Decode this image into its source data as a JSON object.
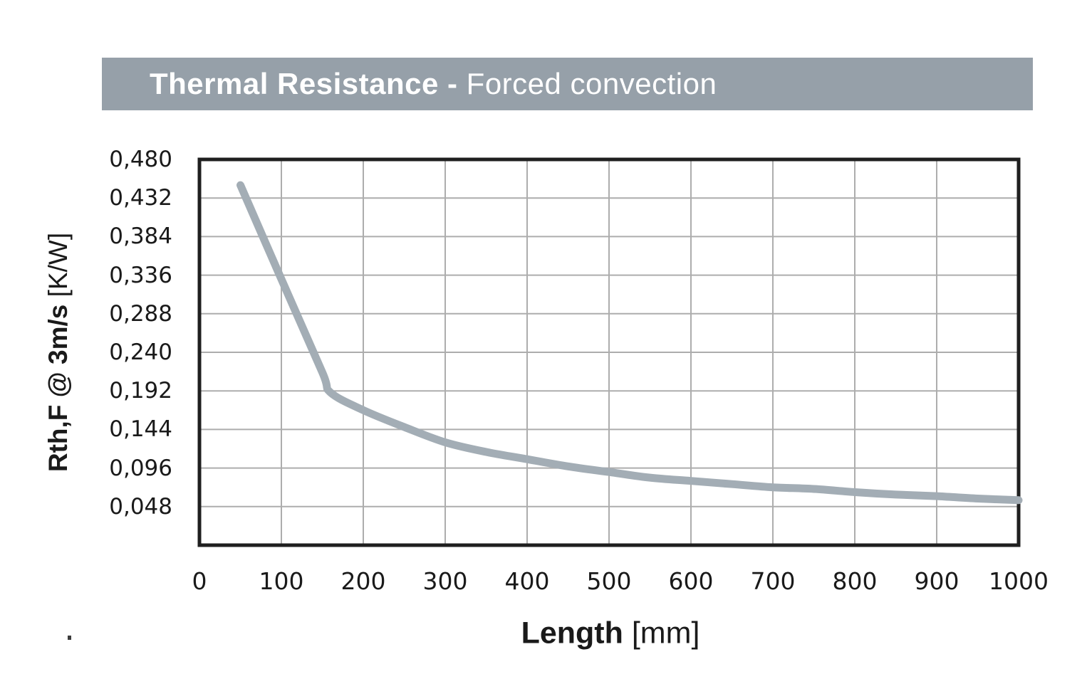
{
  "header": {
    "title_bold": "Thermal Resistance - ",
    "title_regular": "Forced convection",
    "bg_color": "#96a0a9",
    "text_color": "#ffffff"
  },
  "chart_data": {
    "type": "line",
    "title": "Thermal Resistance - Forced convection",
    "xlabel_bold": "Length",
    "xlabel_unit": "[mm]",
    "ylabel_bold": "Rth,F @ 3m/s",
    "ylabel_unit": "[K/W]",
    "xlim": [
      0,
      1000
    ],
    "ylim": [
      0,
      0.48
    ],
    "grid": true,
    "legend": "none",
    "decimal_separator": ",",
    "x_ticks": [
      "0",
      "100",
      "200",
      "300",
      "400",
      "500",
      "600",
      "700",
      "800",
      "900",
      "1000"
    ],
    "x_tick_values": [
      0,
      100,
      200,
      300,
      400,
      500,
      600,
      700,
      800,
      900,
      1000
    ],
    "y_tick_labels": [
      "0,480",
      "0,432",
      "0,384",
      "0,336",
      "0,288",
      "0,240",
      "0,192",
      "0,144",
      "0,096",
      "0,048"
    ],
    "y_tick_values": [
      0.48,
      0.432,
      0.384,
      0.336,
      0.288,
      0.24,
      0.192,
      0.144,
      0.096,
      0.048
    ],
    "colors": {
      "line": "#a3adb5",
      "grid": "#adadad",
      "border": "#1f1f1f",
      "background": "#ffffff"
    },
    "line_width": 11,
    "series": [
      {
        "name": "Rth,F @ 3m/s",
        "points": [
          [
            50,
            0.448
          ],
          [
            100,
            0.331
          ],
          [
            150,
            0.215
          ],
          [
            160,
            0.19
          ],
          [
            200,
            0.168
          ],
          [
            250,
            0.147
          ],
          [
            300,
            0.128
          ],
          [
            350,
            0.116
          ],
          [
            400,
            0.107
          ],
          [
            450,
            0.098
          ],
          [
            500,
            0.091
          ],
          [
            550,
            0.084
          ],
          [
            600,
            0.08
          ],
          [
            650,
            0.076
          ],
          [
            700,
            0.072
          ],
          [
            750,
            0.07
          ],
          [
            800,
            0.066
          ],
          [
            850,
            0.063
          ],
          [
            900,
            0.061
          ],
          [
            950,
            0.058
          ],
          [
            1000,
            0.056
          ]
        ]
      }
    ]
  }
}
